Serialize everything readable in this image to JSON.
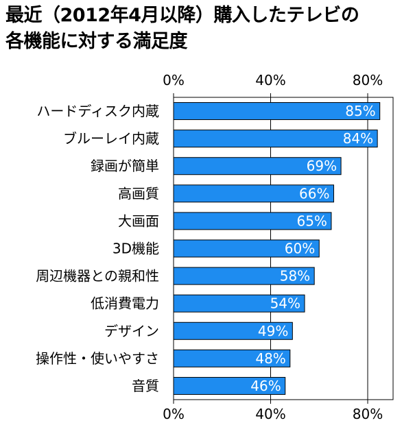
{
  "chart_data": {
    "type": "bar",
    "orientation": "horizontal",
    "title_line1": "最近（2012年4月以降）購入したテレビの",
    "title_line2": "各機能に対する満足度",
    "categories": [
      "ハードディスク内蔵",
      "ブルーレイ内蔵",
      "録画が簡単",
      "高画質",
      "大画面",
      "3D機能",
      "周辺機器との親和性",
      "低消費電力",
      "デザイン",
      "操作性・使いやすさ",
      "音質"
    ],
    "values": [
      85,
      84,
      69,
      66,
      65,
      60,
      58,
      54,
      49,
      48,
      46
    ],
    "value_labels": [
      "85%",
      "84%",
      "69%",
      "66%",
      "65%",
      "60%",
      "58%",
      "54%",
      "49%",
      "48%",
      "46%"
    ],
    "xticks": [
      "0%",
      "40%",
      "80%"
    ],
    "xtick_values": [
      0,
      40,
      80
    ],
    "xlim": [
      0,
      90
    ],
    "grid": "vertical-major",
    "axis_position": "top-and-bottom",
    "bar_color": "#1E8CF0",
    "bar_border": "#000000",
    "label_color": "#ffffff"
  }
}
